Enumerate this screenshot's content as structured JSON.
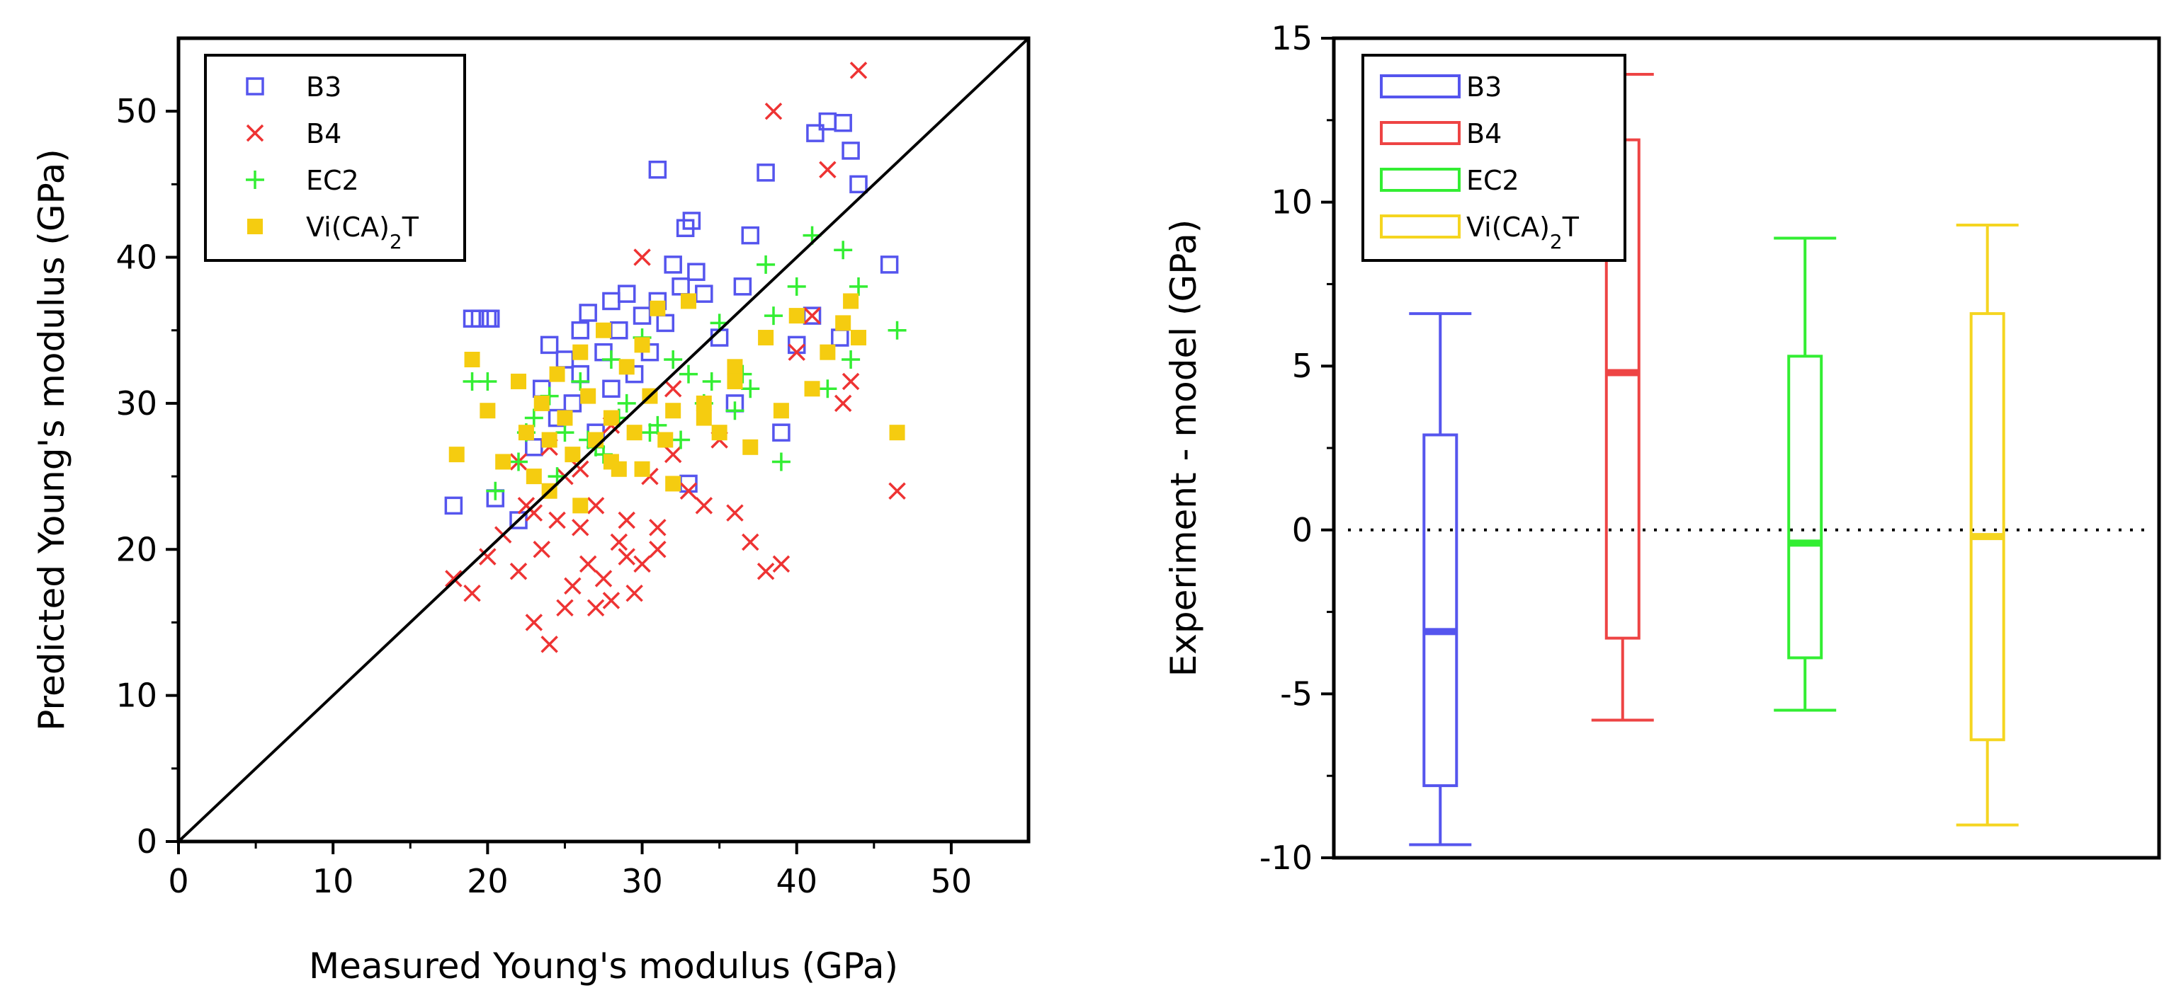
{
  "chart_data": [
    {
      "type": "scatter",
      "title": "",
      "xlabel": "Measured Young's modulus (GPa)",
      "ylabel": "Predicted Young's modulus (GPa)",
      "xlim": [
        0,
        55
      ],
      "ylim": [
        0,
        55
      ],
      "xticks": [
        "0",
        "10",
        "20",
        "30",
        "40",
        "50"
      ],
      "yticks": [
        "0",
        "10",
        "20",
        "30",
        "40",
        "50"
      ],
      "legend_position": "top-left",
      "reference_line": "y = x",
      "series": [
        {
          "name": "B3",
          "marker": "open-square",
          "color": "#5555ee",
          "x": [
            17.8,
            19.5,
            20.2,
            20.5,
            22.0,
            23.0,
            23.5,
            24.0,
            24.5,
            25.0,
            25.5,
            26.0,
            26.5,
            27.0,
            27.5,
            28.0,
            28.5,
            29.0,
            29.5,
            30.0,
            30.5,
            31.0,
            31.5,
            32.0,
            32.5,
            33.0,
            33.5,
            34.0,
            35.0,
            36.0,
            37.0,
            38.0,
            39.0,
            40.0,
            41.0,
            42.0,
            43.0,
            43.5,
            44.0,
            46.0,
            31.0,
            32.8,
            33.2,
            36.5,
            41.2,
            42.8,
            19.0,
            20.0,
            26.0,
            28.0
          ],
          "y": [
            23.0,
            35.8,
            35.8,
            23.5,
            22.0,
            27.0,
            31.0,
            34.0,
            29.0,
            33.0,
            30.0,
            35.0,
            36.2,
            28.0,
            33.5,
            37.0,
            35.0,
            37.5,
            32.0,
            36.0,
            33.5,
            37.0,
            35.5,
            39.5,
            38.0,
            24.5,
            39.0,
            37.5,
            34.5,
            30.0,
            41.5,
            45.8,
            28.0,
            34.0,
            36.0,
            49.3,
            49.2,
            47.3,
            45.0,
            39.5,
            46.0,
            42.0,
            42.5,
            38.0,
            48.5,
            34.5,
            35.8,
            35.8,
            32.0,
            31.0
          ]
        },
        {
          "name": "B4",
          "marker": "x",
          "color": "#ee3333",
          "x": [
            17.8,
            19.0,
            20.0,
            21.0,
            22.0,
            22.5,
            23.0,
            23.5,
            24.0,
            24.5,
            25.0,
            25.5,
            26.0,
            26.5,
            27.0,
            27.5,
            28.0,
            28.5,
            29.0,
            29.5,
            30.0,
            30.5,
            31.0,
            32.0,
            33.0,
            34.0,
            35.0,
            36.0,
            37.0,
            38.0,
            39.0,
            40.0,
            41.0,
            42.0,
            43.0,
            44.0,
            46.5,
            22.0,
            24.0,
            26.0,
            28.0,
            30.0,
            32.0,
            25.0,
            27.0,
            29.0,
            31.0,
            23.0,
            38.5,
            43.5
          ],
          "y": [
            18.0,
            17.0,
            19.5,
            21.0,
            18.5,
            23.0,
            15.0,
            20.0,
            13.5,
            22.0,
            16.0,
            17.5,
            21.5,
            19.0,
            23.0,
            18.0,
            16.5,
            20.5,
            22.0,
            17.0,
            19.0,
            25.0,
            21.5,
            26.5,
            24.0,
            23.0,
            27.5,
            22.5,
            20.5,
            18.5,
            19.0,
            33.5,
            36.0,
            46.0,
            30.0,
            52.8,
            24.0,
            26.0,
            27.0,
            25.5,
            28.5,
            40.0,
            31.0,
            25.0,
            16.0,
            19.5,
            20.0,
            22.5,
            50.0,
            31.5
          ]
        },
        {
          "name": "EC2",
          "marker": "plus",
          "color": "#33ee33",
          "x": [
            19.0,
            20.0,
            20.5,
            22.0,
            23.0,
            24.0,
            25.0,
            26.0,
            27.0,
            28.0,
            29.0,
            30.0,
            31.0,
            32.0,
            33.0,
            34.0,
            35.0,
            36.0,
            37.0,
            38.0,
            39.0,
            40.0,
            41.0,
            42.0,
            43.0,
            43.5,
            44.0,
            46.5,
            24.5,
            26.5,
            28.5,
            30.5,
            32.5,
            34.5,
            36.5,
            38.5,
            22.5,
            27.5
          ],
          "y": [
            31.5,
            31.5,
            24.0,
            26.0,
            29.0,
            30.5,
            28.0,
            31.5,
            27.0,
            33.0,
            30.0,
            34.5,
            28.5,
            33.0,
            32.0,
            30.0,
            35.5,
            29.5,
            31.0,
            39.5,
            26.0,
            38.0,
            41.5,
            31.0,
            40.5,
            33.0,
            38.0,
            35.0,
            25.0,
            27.5,
            29.0,
            28.0,
            27.5,
            31.5,
            32.0,
            36.0,
            28.0,
            26.5
          ]
        },
        {
          "name": "Vi(CA)2T",
          "marker": "filled-square",
          "color": "#f5cc10",
          "x": [
            18.0,
            19.0,
            20.0,
            21.0,
            22.0,
            22.5,
            23.0,
            23.5,
            24.0,
            24.5,
            25.0,
            25.5,
            26.0,
            26.5,
            27.0,
            27.5,
            28.0,
            28.5,
            29.0,
            29.5,
            30.0,
            30.5,
            31.0,
            31.5,
            32.0,
            33.0,
            34.0,
            35.0,
            36.0,
            37.0,
            38.0,
            39.0,
            40.0,
            41.0,
            42.0,
            43.0,
            43.5,
            44.0,
            46.5,
            24.0,
            26.0,
            28.0,
            30.0,
            32.0,
            34.0,
            36.0
          ],
          "y": [
            26.5,
            33.0,
            29.5,
            26.0,
            31.5,
            28.0,
            25.0,
            30.0,
            27.5,
            32.0,
            29.0,
            26.5,
            33.5,
            30.5,
            27.5,
            35.0,
            29.0,
            25.5,
            32.5,
            28.0,
            34.0,
            30.5,
            36.5,
            27.5,
            29.5,
            37.0,
            30.0,
            28.0,
            32.5,
            27.0,
            34.5,
            29.5,
            36.0,
            31.0,
            33.5,
            35.5,
            37.0,
            34.5,
            28.0,
            24.0,
            23.0,
            26.0,
            25.5,
            24.5,
            29.0,
            31.5
          ]
        }
      ]
    },
    {
      "type": "box",
      "title": "",
      "xlabel": "",
      "ylabel": "Experiment - model (GPa)",
      "ylim": [
        -10,
        15
      ],
      "yticks": [
        "-10",
        "-5",
        "0",
        "5",
        "10",
        "15"
      ],
      "legend_position": "top-left",
      "reference_line": "y = 0 (dotted)",
      "series": [
        {
          "name": "B3",
          "color": "#5555ee",
          "whisker_low": -9.6,
          "q1": -7.8,
          "median": -3.1,
          "q3": 2.9,
          "whisker_high": 6.6
        },
        {
          "name": "B4",
          "color": "#ee4444",
          "whisker_low": -5.8,
          "q1": -3.3,
          "median": 4.8,
          "q3": 11.9,
          "whisker_high": 13.9
        },
        {
          "name": "EC2",
          "color": "#33ee33",
          "whisker_low": -5.5,
          "q1": -3.9,
          "median": -0.4,
          "q3": 5.3,
          "whisker_high": 8.9
        },
        {
          "name": "Vi(CA)2T",
          "color": "#f5d520",
          "whisker_low": -9.0,
          "q1": -6.4,
          "median": -0.2,
          "q3": 6.6,
          "whisker_high": 9.3
        }
      ]
    }
  ]
}
